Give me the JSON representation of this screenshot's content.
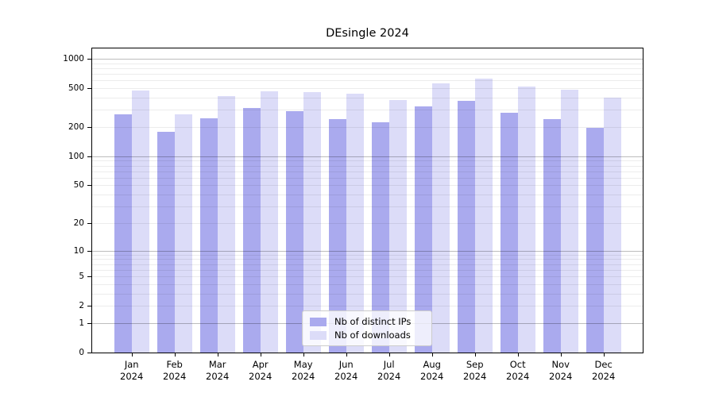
{
  "chart_data": {
    "type": "bar",
    "title": "DEsingle 2024",
    "categories": [
      "Jan 2024",
      "Feb 2024",
      "Mar 2024",
      "Apr 2024",
      "May 2024",
      "Jun 2024",
      "Jul 2024",
      "Aug 2024",
      "Sep 2024",
      "Oct 2024",
      "Nov 2024",
      "Dec 2024"
    ],
    "series": [
      {
        "name": "Nb of distinct IPs",
        "color": "#aaaaee",
        "values": [
          272,
          180,
          246,
          315,
          289,
          241,
          224,
          324,
          369,
          282,
          241,
          198
        ]
      },
      {
        "name": "Nb of downloads",
        "color": "#dcdcf8",
        "values": [
          472,
          268,
          416,
          465,
          459,
          442,
          376,
          558,
          632,
          517,
          482,
          398
        ]
      }
    ],
    "yscale": "log1p",
    "ylim": [
      0,
      1300
    ],
    "ytick_values": [
      0,
      1,
      2,
      5,
      10,
      20,
      50,
      100,
      200,
      500,
      1000
    ],
    "ytick_labels": [
      "0",
      "1",
      "2",
      "5",
      "10",
      "20",
      "50",
      "100",
      "200",
      "500",
      "1000"
    ],
    "grid_major": [
      1,
      10,
      100,
      1000
    ],
    "grid_minor": [
      2,
      3,
      4,
      5,
      6,
      7,
      8,
      9,
      20,
      30,
      40,
      50,
      60,
      70,
      80,
      90,
      200,
      300,
      400,
      500,
      600,
      700,
      800,
      900
    ],
    "grid_on": true,
    "legend_position": "lower center",
    "axis_color": "#000000",
    "background_color": "#ffffff"
  }
}
